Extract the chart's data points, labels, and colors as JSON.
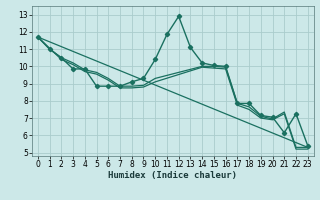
{
  "xlabel": "Humidex (Indice chaleur)",
  "background_color": "#cce8e8",
  "grid_color": "#aacccc",
  "line_color": "#1a7060",
  "xlim": [
    -0.5,
    23.5
  ],
  "ylim": [
    4.8,
    13.5
  ],
  "x_ticks": [
    0,
    1,
    2,
    3,
    4,
    5,
    6,
    7,
    8,
    9,
    10,
    11,
    12,
    13,
    14,
    15,
    16,
    17,
    18,
    19,
    20,
    21,
    22,
    23
  ],
  "y_ticks": [
    5,
    6,
    7,
    8,
    9,
    10,
    11,
    12,
    13
  ],
  "series": [
    {
      "x": [
        0,
        1,
        2,
        3,
        4,
        5,
        6,
        7,
        8,
        9,
        10,
        11,
        12,
        13,
        14,
        15,
        16,
        17,
        18,
        19,
        20,
        21,
        22,
        23
      ],
      "y": [
        11.7,
        11.0,
        10.5,
        9.85,
        9.85,
        8.85,
        8.85,
        8.85,
        9.1,
        9.3,
        10.4,
        11.85,
        12.9,
        11.1,
        10.2,
        10.05,
        10.0,
        7.85,
        7.85,
        7.15,
        7.05,
        6.15,
        7.25,
        5.4
      ],
      "marker": true,
      "lw": 1.0
    },
    {
      "x": [
        0,
        1,
        2,
        3,
        4,
        5,
        6,
        7,
        8,
        9,
        10,
        14,
        15,
        16,
        17,
        18,
        19,
        20,
        21,
        22,
        23
      ],
      "y": [
        11.7,
        11.0,
        10.5,
        10.2,
        9.8,
        9.65,
        9.3,
        8.85,
        8.85,
        8.9,
        9.3,
        10.0,
        10.0,
        9.95,
        7.85,
        7.65,
        7.1,
        6.95,
        7.35,
        5.3,
        5.3
      ],
      "marker": false,
      "lw": 0.9
    },
    {
      "x": [
        0,
        2,
        3,
        4,
        5,
        6,
        7,
        8,
        9,
        10,
        14,
        15,
        16,
        17,
        18,
        19,
        20,
        21,
        22,
        23
      ],
      "y": [
        11.7,
        10.4,
        10.1,
        9.7,
        9.55,
        9.2,
        8.75,
        8.75,
        8.8,
        9.1,
        9.95,
        9.9,
        9.85,
        7.75,
        7.5,
        7.0,
        6.9,
        7.25,
        5.2,
        5.2
      ],
      "marker": false,
      "lw": 0.9
    },
    {
      "x": [
        0,
        23
      ],
      "y": [
        11.7,
        5.3
      ],
      "marker": false,
      "lw": 0.9
    }
  ]
}
